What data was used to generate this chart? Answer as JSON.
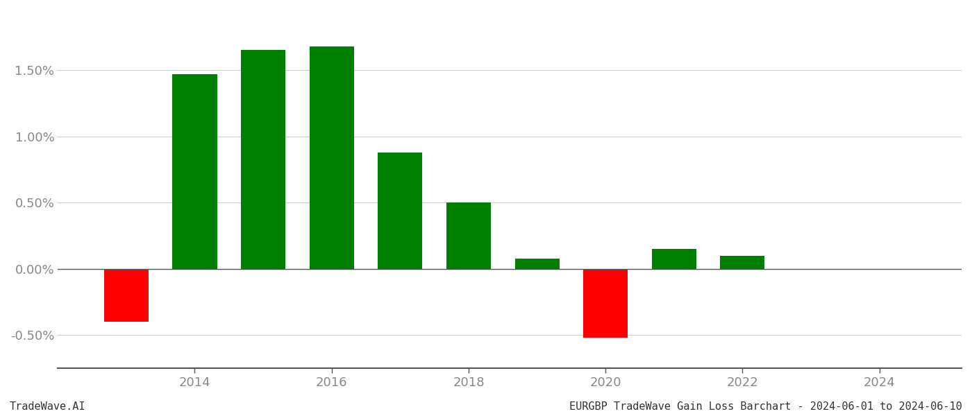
{
  "years": [
    2013,
    2014,
    2015,
    2016,
    2017,
    2018,
    2019,
    2020,
    2021,
    2022,
    2023
  ],
  "values": [
    -0.004,
    0.0147,
    0.0165,
    0.0168,
    0.0088,
    0.005,
    0.0008,
    -0.0052,
    0.0015,
    0.001,
    0.0
  ],
  "bar_width": 0.65,
  "color_positive": "#008000",
  "color_negative": "#ff0000",
  "ylim_min": -0.0075,
  "ylim_max": 0.0195,
  "yticks": [
    -0.005,
    0.0,
    0.005,
    0.01,
    0.015
  ],
  "ytick_labels": [
    "-0.50%",
    "0.00%",
    "0.50%",
    "1.00%",
    "1.50%"
  ],
  "xlim_min": 2012.0,
  "xlim_max": 2025.2,
  "xticks": [
    2014,
    2016,
    2018,
    2020,
    2022,
    2024
  ],
  "xlabel": "",
  "ylabel": "",
  "title": "",
  "footer_left": "TradeWave.AI",
  "footer_right": "EURGBP TradeWave Gain Loss Barchart - 2024-06-01 to 2024-06-10",
  "background_color": "#ffffff",
  "grid_color": "#cccccc",
  "tick_label_color": "#888888",
  "footer_font_size": 11,
  "tick_font_size": 13
}
